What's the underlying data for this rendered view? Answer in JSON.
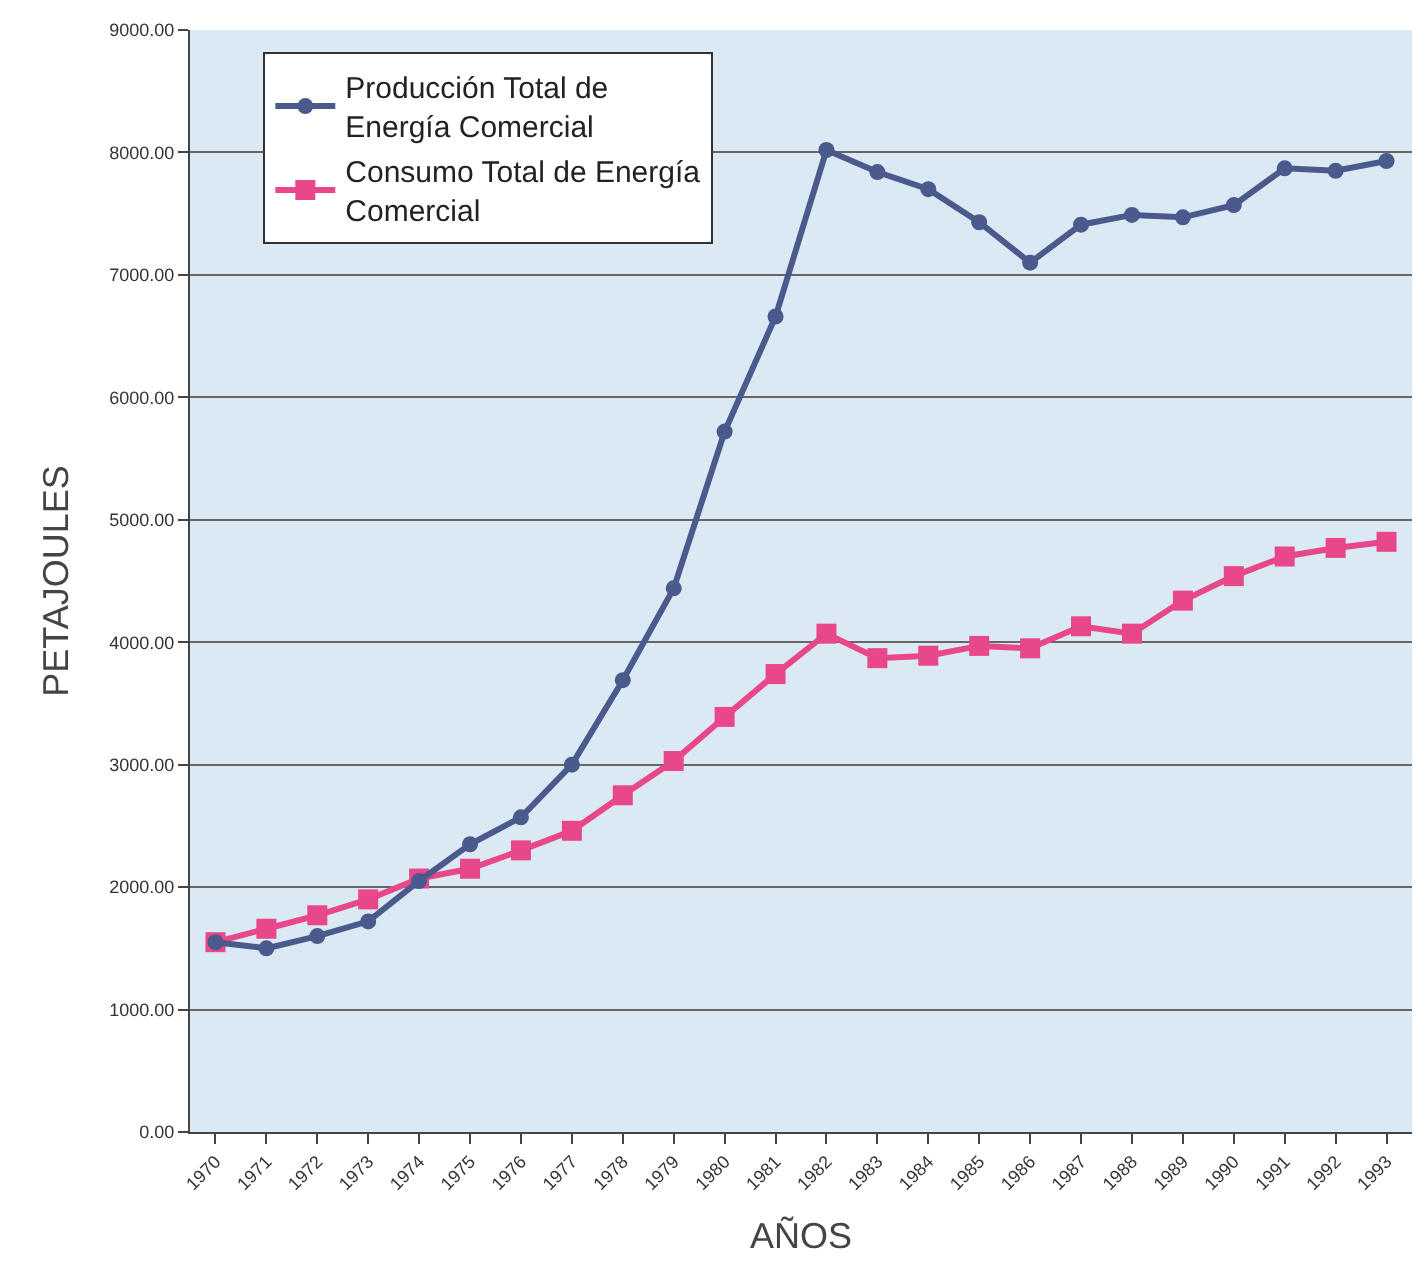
{
  "chart_data": {
    "type": "line",
    "xlabel": "AÑOS",
    "ylabel": "PETAJOULES",
    "categories": [
      "1970",
      "1971",
      "1972",
      "1973",
      "1974",
      "1975",
      "1976",
      "1977",
      "1978",
      "1979",
      "1980",
      "1981",
      "1982",
      "1983",
      "1984",
      "1985",
      "1986",
      "1987",
      "1988",
      "1989",
      "1990",
      "1991",
      "1992",
      "1993"
    ],
    "series": [
      {
        "name": "Producción Total de Energía Comercial",
        "color": "#4a5a8c",
        "marker": "circle",
        "values": [
          1550,
          1500,
          1600,
          1720,
          2050,
          2350,
          2570,
          3000,
          3690,
          4440,
          5720,
          6660,
          8020,
          7840,
          7700,
          7430,
          7100,
          7410,
          7490,
          7470,
          7570,
          7870,
          7850,
          7930
        ]
      },
      {
        "name": "Consumo Total de Energía Comercial",
        "color": "#e8488a",
        "marker": "square",
        "values": [
          1550,
          1660,
          1770,
          1900,
          2070,
          2150,
          2300,
          2460,
          2750,
          3030,
          3390,
          3740,
          4070,
          3870,
          3890,
          3970,
          3950,
          4130,
          4070,
          4340,
          4540,
          4700,
          4770,
          4820
        ]
      }
    ],
    "ylim": [
      0,
      9000
    ],
    "yticks": [
      {
        "value": 0,
        "label": "0.00"
      },
      {
        "value": 1000,
        "label": "1000.00"
      },
      {
        "value": 2000,
        "label": "2000.00"
      },
      {
        "value": 3000,
        "label": "3000.00"
      },
      {
        "value": 4000,
        "label": "4000.00"
      },
      {
        "value": 5000,
        "label": "5000.00"
      },
      {
        "value": 6000,
        "label": "6000.00"
      },
      {
        "value": 7000,
        "label": "7000.00"
      },
      {
        "value": 8000,
        "label": "8000.00"
      },
      {
        "value": 9000,
        "label": "9000.00"
      }
    ],
    "grid": "y",
    "legend": "top left",
    "line_style": "solid"
  }
}
